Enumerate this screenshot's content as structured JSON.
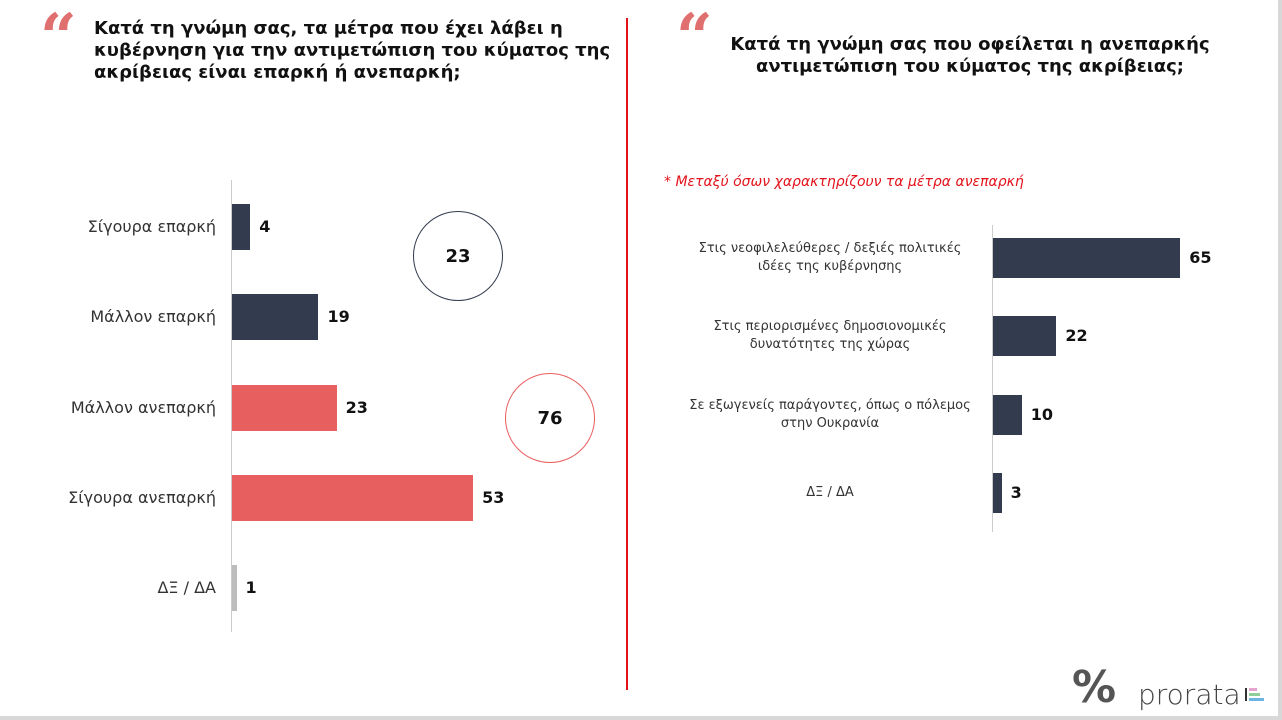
{
  "colors": {
    "dark": "#333c4f",
    "red": "#e85f5f",
    "gray": "#bdbdbd",
    "accent": "#e3121b"
  },
  "left": {
    "title": "Κατά τη γνώμη σας, τα μέτρα που έχει λάβει η κυβέρνηση για την αντιμετώπιση του κύματος της ακρίβειας είναι επαρκή ή ανεπαρκή;",
    "circles": [
      {
        "value": "23",
        "color": "dark"
      },
      {
        "value": "76",
        "color": "red"
      }
    ]
  },
  "right": {
    "title": "Κατά τη γνώμη σας που οφείλεται η ανεπαρκής αντιμετώπιση του κύματος της ακρίβειας;",
    "note": "* Μεταξύ όσων χαρακτηρίζουν τα μέτρα ανεπαρκή"
  },
  "chart_data": [
    {
      "type": "bar",
      "orientation": "horizontal",
      "categories": [
        "Σίγουρα επαρκή",
        "Μάλλον επαρκή",
        "Μάλλον ανεπαρκή",
        "Σίγουρα ανεπαρκή",
        "ΔΞ / ΔΑ"
      ],
      "values": [
        4,
        19,
        23,
        53,
        1
      ],
      "bar_colors": [
        "dark",
        "dark",
        "red",
        "red",
        "gray"
      ]
    },
    {
      "type": "bar",
      "orientation": "horizontal",
      "categories": [
        "Στις νεοφιλελεύθερες / δεξιές πολιτικές ιδέες της κυβέρνησης",
        "Στις περιορισμένες δημοσιονομικές δυνατότητες της χώρας",
        "Σε εξωγενείς παράγοντες, όπως ο πόλεμος στην Ουκρανία",
        "ΔΞ / ΔΑ"
      ],
      "values": [
        65,
        22,
        10,
        3
      ],
      "bar_colors": [
        "dark",
        "dark",
        "dark",
        "dark"
      ]
    }
  ],
  "logo": {
    "text": "prorata"
  }
}
